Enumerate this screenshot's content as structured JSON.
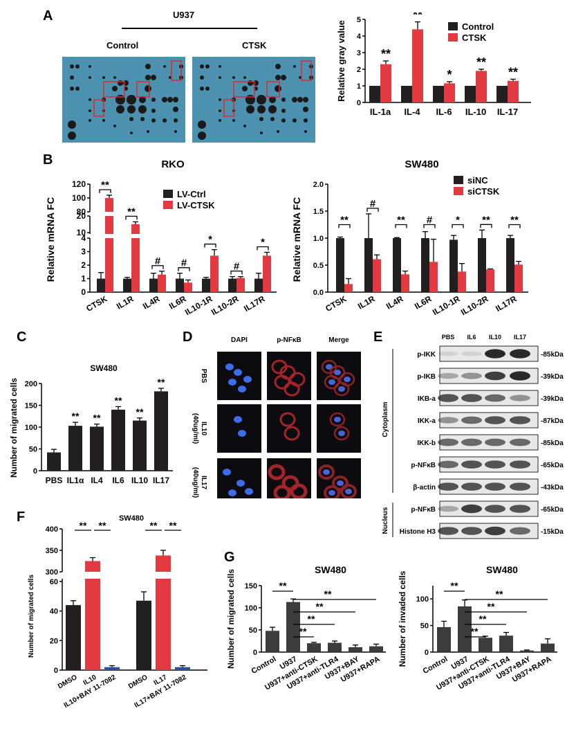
{
  "panel_letters": [
    "A",
    "B",
    "C",
    "D",
    "E",
    "F",
    "G"
  ],
  "array": {
    "title": "U937",
    "left_label": "Control",
    "right_label": "CTSK",
    "bg": "#4c92b0"
  },
  "colors": {
    "black": "#231f20",
    "red": "#e33a41",
    "darkgray": "#3c3c3c",
    "blue": "#2e4f9e"
  },
  "panelA_chart": {
    "type": "bar",
    "ylabel": "Relative gray value",
    "ylim": [
      0,
      5
    ],
    "yticks": [
      "0",
      "1",
      "2",
      "3",
      "4",
      "5"
    ],
    "categories": [
      "IL-1a",
      "IL-4",
      "IL-6",
      "IL-10",
      "IL-17"
    ],
    "series": [
      {
        "name": "Control",
        "values": [
          1,
          1,
          1,
          1,
          1
        ],
        "err": [
          0.03,
          0.03,
          0.03,
          0.03,
          0.03
        ]
      },
      {
        "name": "CTSK",
        "values": [
          2.3,
          4.4,
          1.15,
          1.9,
          1.3
        ],
        "err": [
          0.2,
          0.45,
          0.1,
          0.1,
          0.1
        ]
      }
    ],
    "sig": [
      "**",
      "**",
      "*",
      "**",
      "**"
    ]
  },
  "chart_data": [
    {
      "type": "bar",
      "categories": [
        "IL-1a",
        "IL-4",
        "IL-6",
        "IL-10",
        "IL-17"
      ],
      "series": [
        {
          "name": "Control",
          "values": [
            1,
            1,
            1,
            1,
            1
          ]
        },
        {
          "name": "CTSK",
          "values": [
            2.3,
            4.4,
            1.15,
            1.9,
            1.3
          ]
        }
      ],
      "ylabel": "Relative gray value",
      "ylim": [
        0,
        5
      ]
    },
    {
      "type": "bar",
      "title": "RKO",
      "categories": [
        "CTSK",
        "IL1R",
        "IL4R",
        "IL6R",
        "IL10-1R",
        "IL10-2R",
        "IL17R"
      ],
      "series": [
        {
          "name": "LV-Ctrl",
          "values": [
            1,
            1,
            1,
            1,
            1,
            1,
            1
          ]
        },
        {
          "name": "LV-CTSK",
          "values": [
            100,
            15,
            1.3,
            0.7,
            2.7,
            1.05,
            2.7
          ]
        }
      ],
      "ylabel": "Relative mRNA FC"
    },
    {
      "type": "bar",
      "title": "SW480",
      "categories": [
        "CTSK",
        "IL1R",
        "IL4R",
        "IL6R",
        "IL10-1R",
        "IL10-2R",
        "IL17R"
      ],
      "series": [
        {
          "name": "siNC",
          "values": [
            1,
            1,
            1,
            1,
            0.97,
            1,
            1
          ]
        },
        {
          "name": "siCTSK",
          "values": [
            0.15,
            0.61,
            0.33,
            0.56,
            0.38,
            0.42,
            0.51
          ]
        }
      ],
      "ylabel": "Relative mRNA FC",
      "ylim": [
        0,
        2
      ]
    },
    {
      "type": "bar",
      "title": "SW480",
      "categories": [
        "PBS",
        "IL1α",
        "IL4",
        "IL6",
        "IL10",
        "IL17"
      ],
      "values": [
        42,
        103,
        101,
        140,
        115,
        182
      ],
      "ylabel": "Number of migrated cells",
      "ylim": [
        0,
        200
      ]
    },
    {
      "type": "bar",
      "title": "SW480",
      "categories": [
        "DMSO",
        "IL10",
        "IL10+BAY 11-7082",
        "DMSO",
        "IL17",
        "IL17+BAY 11-7082"
      ],
      "values": [
        44,
        325,
        2,
        47,
        338,
        2
      ],
      "ylabel": "Number of migrated cells"
    },
    {
      "type": "bar",
      "title": "SW480",
      "categories": [
        "Control",
        "U937",
        "U937+anti-CTSK",
        "U937+anti-TLR4",
        "U937+BAY",
        "U937+RAPA"
      ],
      "values": [
        48,
        113,
        20,
        21,
        11,
        13
      ],
      "ylabel": "Number of migrated cells",
      "ylim": [
        0,
        150
      ]
    },
    {
      "type": "bar",
      "title": "SW480",
      "categories": [
        "Control",
        "U937",
        "U937+anti-CTSK",
        "U937+anti-TLR4",
        "U937+BAY",
        "U937+RAPA"
      ],
      "values": [
        47,
        86,
        27,
        31,
        3,
        16
      ],
      "ylabel": "Number of invaded cells",
      "ylim": [
        0,
        125
      ]
    }
  ],
  "panelB": {
    "rko": {
      "title": "RKO",
      "ylabel": "Relative mRNA FC",
      "categories": [
        "CTSK",
        "IL1R",
        "IL4R",
        "IL6R",
        "IL10-1R",
        "IL10-2R",
        "IL17R"
      ],
      "legend": [
        "LV-Ctrl",
        "LV-CTSK"
      ],
      "ticks_top": [
        "80",
        "100",
        "120"
      ],
      "ticks_mid": [
        "10",
        "20"
      ],
      "ticks_low": [
        "0",
        "1",
        "2",
        "3",
        "4"
      ],
      "sig": [
        "**",
        "**",
        "#",
        "#",
        "*",
        "#",
        "*"
      ]
    },
    "sw": {
      "title": "SW480",
      "ylabel": "Relative mRNA FC",
      "categories": [
        "CTSK",
        "IL1R",
        "IL4R",
        "IL6R",
        "IL10-1R",
        "IL10-2R",
        "IL17R"
      ],
      "legend": [
        "siNC",
        "siCTSK"
      ],
      "ticks": [
        "0.0",
        "0.5",
        "1.0",
        "1.5",
        "2.0"
      ],
      "siNC": [
        1,
        1,
        1,
        1,
        0.97,
        1,
        1
      ],
      "siNC_err": [
        0.02,
        0.45,
        0.01,
        0.12,
        0.08,
        0.15,
        0.05
      ],
      "siCTSK": [
        0.15,
        0.61,
        0.33,
        0.56,
        0.38,
        0.42,
        0.51
      ],
      "siCTSK_err": [
        0.1,
        0.08,
        0.06,
        0.42,
        0.15,
        0.01,
        0.06
      ],
      "sig": [
        "**",
        "#",
        "**",
        "#",
        "*",
        "**",
        "**"
      ]
    }
  },
  "panelC": {
    "title": "SW480",
    "ylabel": "Number of migrated cells",
    "categories": [
      "PBS",
      "IL1α",
      "IL4",
      "IL6",
      "IL10",
      "IL17"
    ],
    "values": [
      42,
      103,
      101,
      140,
      115,
      182
    ],
    "err": [
      7,
      8,
      6,
      7,
      6,
      7
    ],
    "yticks": [
      "0",
      "50",
      "100",
      "150",
      "200"
    ],
    "sig": [
      "",
      "**",
      "**",
      "**",
      "**",
      "**"
    ]
  },
  "panelD": {
    "cols": [
      "DAPI",
      "p-NFκB",
      "Merge"
    ],
    "rows": [
      "PBS",
      "IL10",
      "IL17"
    ],
    "row_sub": [
      "",
      "(40ug/ml)",
      "(40ug/ml)"
    ]
  },
  "panelE": {
    "lanes": [
      "PBS",
      "IL6",
      "IL10",
      "IL17"
    ],
    "bands": [
      "p-IKK",
      "p-IKB",
      "IKB-a",
      "IKK-a",
      "IKK-b",
      "p-NFκB",
      "β-actin",
      "p-NFκB",
      "Histone H3"
    ],
    "sizes": [
      "85kDa",
      "39kDa",
      "39kDa",
      "87kDa",
      "85kDa",
      "65kDa",
      "43kDa",
      "65kDa",
      "15kDa"
    ],
    "groups": [
      "Cytoplasm",
      "Nucleus"
    ]
  },
  "panelF": {
    "title": "SW480",
    "ylabel": "Number of migrated cells",
    "categories": [
      "DMSO",
      "IL10",
      "IL10+BAY 11-7082",
      "DMSO",
      "IL17",
      "IL17+BAY 11-7082"
    ],
    "values": [
      44,
      325,
      2,
      47,
      338,
      2
    ],
    "ticks_low": [
      "0",
      "20",
      "40",
      "60"
    ],
    "ticks_high": [
      "300",
      "350",
      "400"
    ],
    "sig": "**"
  },
  "panelG": {
    "left": {
      "title": "SW480",
      "ylabel": "Number of migrated cells",
      "yticks": [
        "0",
        "50",
        "100",
        "150"
      ],
      "values": [
        48,
        113,
        20,
        21,
        11,
        13
      ],
      "err": [
        8,
        7,
        2,
        4,
        5,
        5
      ]
    },
    "right": {
      "title": "SW480",
      "ylabel": "Number of invaded cells",
      "yticks": [
        "0",
        "50",
        "100"
      ],
      "values": [
        47,
        86,
        27,
        31,
        3,
        16
      ],
      "err": [
        11,
        12,
        3,
        6,
        1,
        9
      ]
    },
    "categories": [
      "Control",
      "U937",
      "U937+anti-CTSK",
      "U937+anti-TLR4",
      "U937+BAY",
      "U937+RAPA"
    ],
    "sig": "**"
  }
}
